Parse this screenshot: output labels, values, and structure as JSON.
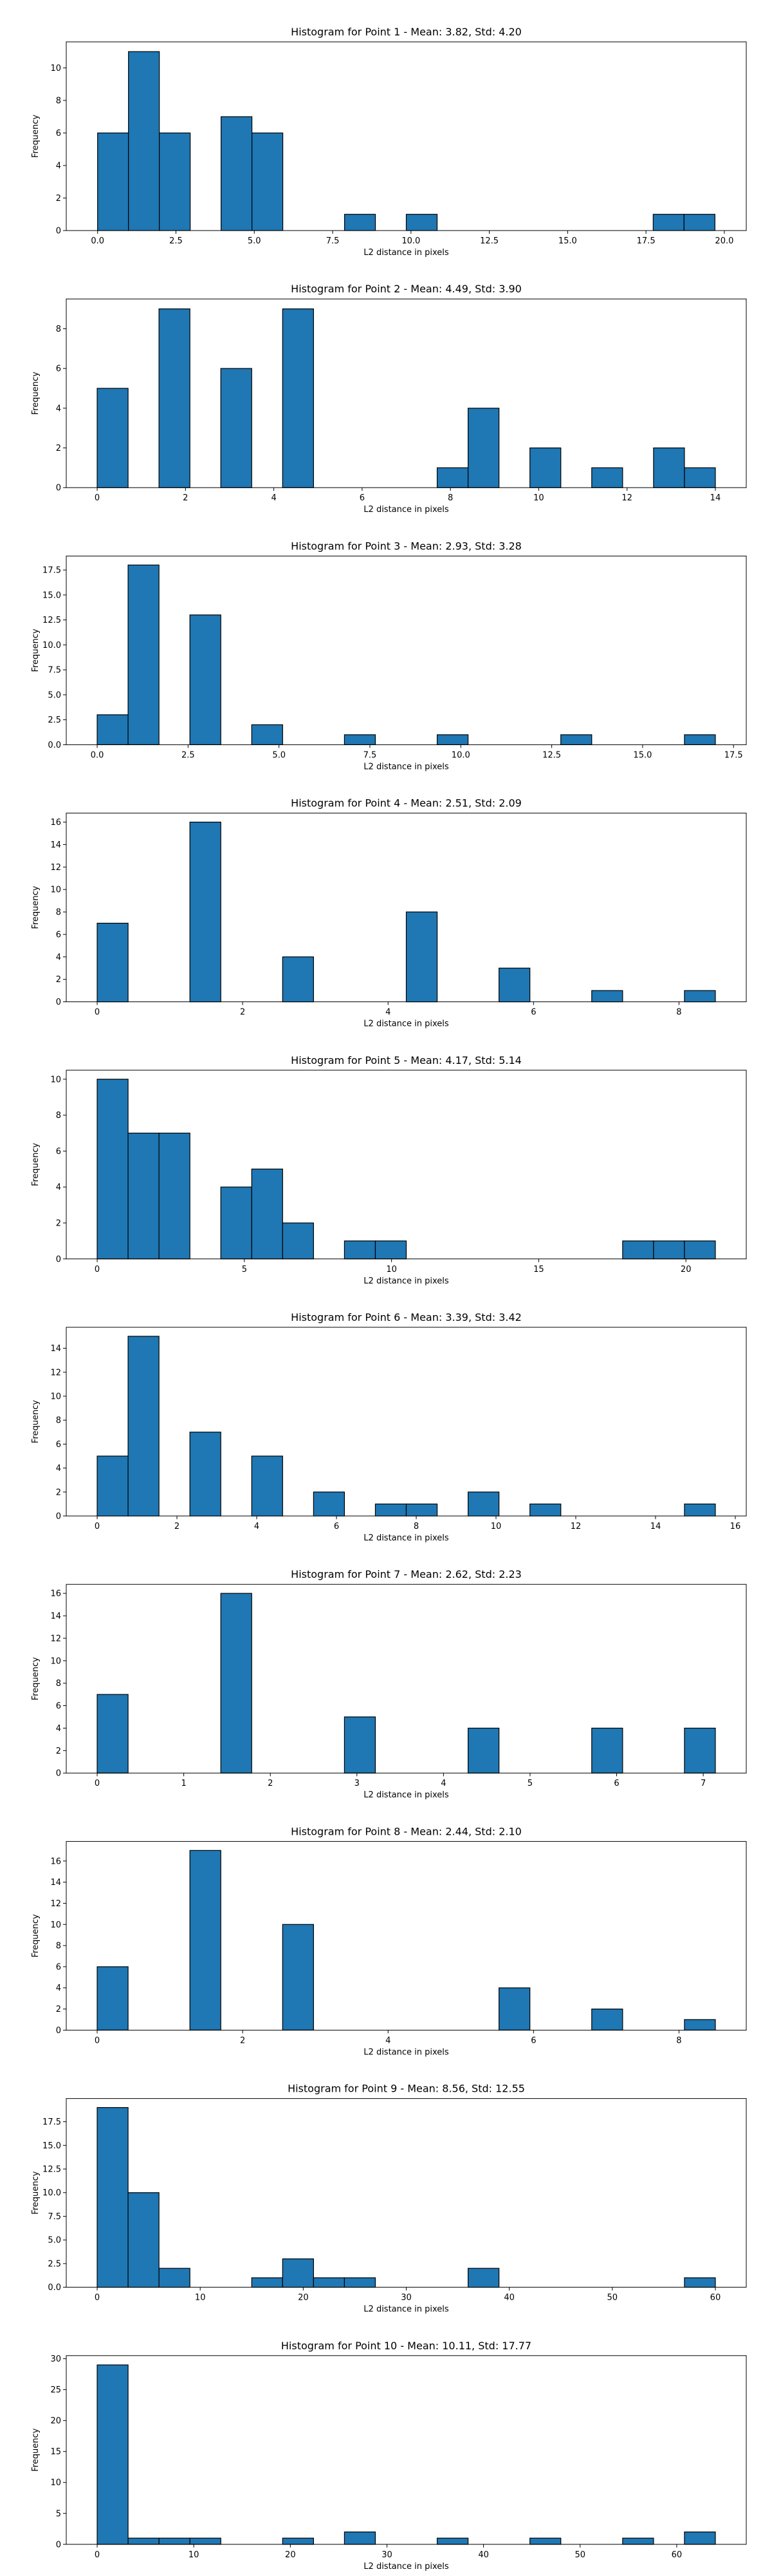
{
  "chart_data": [
    {
      "type": "bar",
      "title": "Histogram for Point 1 - Mean: 3.82, Std: 4.20",
      "xlabel": "L2 distance in pixels",
      "ylabel": "Frequency",
      "xlim": [
        -1.0,
        20.7
      ],
      "ylim": [
        0,
        11.6
      ],
      "xticks": [
        0.0,
        2.5,
        5.0,
        7.5,
        10.0,
        12.5,
        15.0,
        17.5,
        20.0
      ],
      "xtick_labels": [
        "0.0",
        "2.5",
        "5.0",
        "7.5",
        "10.0",
        "12.5",
        "15.0",
        "17.5",
        "20.0"
      ],
      "yticks": [
        0,
        2,
        4,
        6,
        8,
        10
      ],
      "ytick_labels": [
        "0",
        "2",
        "4",
        "6",
        "8",
        "10"
      ],
      "bin_edges": [
        0.0,
        0.985,
        1.97,
        2.955,
        3.94,
        4.925,
        5.91,
        6.895,
        7.88,
        8.865,
        9.85,
        10.835,
        11.82,
        12.805,
        13.79,
        14.775,
        15.76,
        16.745,
        17.73,
        18.715,
        19.7
      ],
      "counts": [
        6,
        11,
        6,
        0,
        7,
        6,
        0,
        0,
        1,
        0,
        1,
        0,
        0,
        0,
        0,
        0,
        0,
        0,
        1,
        1
      ],
      "color": "#1f77b4"
    },
    {
      "type": "bar",
      "title": "Histogram for Point 2 - Mean: 4.49, Std: 3.90",
      "xlabel": "L2 distance in pixels",
      "ylabel": "Frequency",
      "xlim": [
        -0.7,
        14.7
      ],
      "ylim": [
        0,
        9.5
      ],
      "xticks": [
        0,
        2,
        4,
        6,
        8,
        10,
        12,
        14
      ],
      "xtick_labels": [
        "0",
        "2",
        "4",
        "6",
        "8",
        "10",
        "12",
        "14"
      ],
      "yticks": [
        0,
        2,
        4,
        6,
        8
      ],
      "ytick_labels": [
        "0",
        "2",
        "4",
        "6",
        "8"
      ],
      "bin_edges": [
        0.0,
        0.7,
        1.4,
        2.1,
        2.8,
        3.5,
        4.2,
        4.9,
        5.6,
        6.3,
        7.0,
        7.7,
        8.4,
        9.1,
        9.8,
        10.5,
        11.2,
        11.9,
        12.6,
        13.3,
        14.0
      ],
      "counts": [
        5,
        0,
        9,
        0,
        6,
        0,
        9,
        0,
        0,
        0,
        0,
        1,
        4,
        0,
        2,
        0,
        1,
        0,
        2,
        1
      ],
      "color": "#1f77b4"
    },
    {
      "type": "bar",
      "title": "Histogram for Point 3 - Mean: 2.93, Std: 3.28",
      "xlabel": "L2 distance in pixels",
      "ylabel": "Frequency",
      "xlim": [
        -0.85,
        17.85
      ],
      "ylim": [
        0,
        18.9
      ],
      "xticks": [
        0.0,
        2.5,
        5.0,
        7.5,
        10.0,
        12.5,
        15.0,
        17.5
      ],
      "xtick_labels": [
        "0.0",
        "2.5",
        "5.0",
        "7.5",
        "10.0",
        "12.5",
        "15.0",
        "17.5"
      ],
      "yticks": [
        0.0,
        2.5,
        5.0,
        7.5,
        10.0,
        12.5,
        15.0,
        17.5
      ],
      "ytick_labels": [
        "0.0",
        "2.5",
        "5.0",
        "7.5",
        "10.0",
        "12.5",
        "15.0",
        "17.5"
      ],
      "bin_edges": [
        0.0,
        0.85,
        1.7,
        2.55,
        3.4,
        4.25,
        5.1,
        5.95,
        6.8,
        7.65,
        8.5,
        9.35,
        10.2,
        11.05,
        11.9,
        12.75,
        13.6,
        14.45,
        15.3,
        16.15,
        17.0
      ],
      "counts": [
        3,
        18,
        0,
        13,
        0,
        2,
        0,
        0,
        1,
        0,
        0,
        1,
        0,
        0,
        0,
        1,
        0,
        0,
        0,
        1
      ],
      "color": "#1f77b4"
    },
    {
      "type": "bar",
      "title": "Histogram for Point 4 - Mean: 2.51, Std: 2.09",
      "xlabel": "L2 distance in pixels",
      "ylabel": "Frequency",
      "xlim": [
        -0.425,
        8.925
      ],
      "ylim": [
        0,
        16.8
      ],
      "xticks": [
        0,
        2,
        4,
        6,
        8
      ],
      "xtick_labels": [
        "0",
        "2",
        "4",
        "6",
        "8"
      ],
      "yticks": [
        0,
        2,
        4,
        6,
        8,
        10,
        12,
        14,
        16
      ],
      "ytick_labels": [
        "0",
        "2",
        "4",
        "6",
        "8",
        "10",
        "12",
        "14",
        "16"
      ],
      "bin_edges": [
        0.0,
        0.425,
        0.85,
        1.275,
        1.7,
        2.125,
        2.55,
        2.975,
        3.4,
        3.825,
        4.25,
        4.675,
        5.1,
        5.525,
        5.95,
        6.375,
        6.8,
        7.225,
        7.65,
        8.075,
        8.5
      ],
      "counts": [
        7,
        0,
        0,
        16,
        0,
        0,
        4,
        0,
        0,
        0,
        8,
        0,
        0,
        3,
        0,
        0,
        1,
        0,
        0,
        1
      ],
      "color": "#1f77b4"
    },
    {
      "type": "bar",
      "title": "Histogram for Point 5 - Mean: 4.17, Std: 5.14",
      "xlabel": "L2 distance in pixels",
      "ylabel": "Frequency",
      "xlim": [
        -1.05,
        22.05
      ],
      "ylim": [
        0,
        10.5
      ],
      "xticks": [
        0,
        5,
        10,
        15,
        20
      ],
      "xtick_labels": [
        "0",
        "5",
        "10",
        "15",
        "20"
      ],
      "yticks": [
        0,
        2,
        4,
        6,
        8,
        10
      ],
      "ytick_labels": [
        "0",
        "2",
        "4",
        "6",
        "8",
        "10"
      ],
      "bin_edges": [
        0.0,
        1.05,
        2.1,
        3.15,
        4.2,
        5.25,
        6.3,
        7.35,
        8.4,
        9.45,
        10.5,
        11.55,
        12.6,
        13.65,
        14.7,
        15.75,
        16.8,
        17.85,
        18.9,
        19.95,
        21.0
      ],
      "counts": [
        10,
        7,
        7,
        0,
        4,
        5,
        2,
        0,
        1,
        1,
        0,
        0,
        0,
        0,
        0,
        0,
        0,
        1,
        1,
        1
      ],
      "color": "#1f77b4"
    },
    {
      "type": "bar",
      "title": "Histogram for Point 6 - Mean: 3.39, Std: 3.42",
      "xlabel": "L2 distance in pixels",
      "ylabel": "Frequency",
      "xlim": [
        -0.775,
        16.275
      ],
      "ylim": [
        0,
        15.75
      ],
      "xticks": [
        0,
        2,
        4,
        6,
        8,
        10,
        12,
        14,
        16
      ],
      "xtick_labels": [
        "0",
        "2",
        "4",
        "6",
        "8",
        "10",
        "12",
        "14",
        "16"
      ],
      "yticks": [
        0,
        2,
        4,
        6,
        8,
        10,
        12,
        14
      ],
      "ytick_labels": [
        "0",
        "2",
        "4",
        "6",
        "8",
        "10",
        "12",
        "14"
      ],
      "bin_edges": [
        0.0,
        0.775,
        1.55,
        2.325,
        3.1,
        3.875,
        4.65,
        5.425,
        6.2,
        6.975,
        7.75,
        8.525,
        9.3,
        10.075,
        10.85,
        11.625,
        12.4,
        13.175,
        13.95,
        14.725,
        15.5
      ],
      "counts": [
        5,
        15,
        0,
        7,
        0,
        5,
        0,
        2,
        0,
        1,
        1,
        0,
        2,
        0,
        1,
        0,
        0,
        0,
        0,
        1
      ],
      "color": "#1f77b4"
    },
    {
      "type": "bar",
      "title": "Histogram for Point 7 - Mean: 2.62, Std: 2.23",
      "xlabel": "L2 distance in pixels",
      "ylabel": "Frequency",
      "xlim": [
        -0.357,
        7.497
      ],
      "ylim": [
        0,
        16.8
      ],
      "xticks": [
        0,
        1,
        2,
        3,
        4,
        5,
        6,
        7
      ],
      "xtick_labels": [
        "0",
        "1",
        "2",
        "3",
        "4",
        "5",
        "6",
        "7"
      ],
      "yticks": [
        0,
        2,
        4,
        6,
        8,
        10,
        12,
        14,
        16
      ],
      "ytick_labels": [
        "0",
        "2",
        "4",
        "6",
        "8",
        "10",
        "12",
        "14",
        "16"
      ],
      "bin_edges": [
        0.0,
        0.357,
        0.714,
        1.071,
        1.428,
        1.785,
        2.142,
        2.499,
        2.856,
        3.213,
        3.57,
        3.927,
        4.284,
        4.641,
        4.998,
        5.355,
        5.712,
        6.069,
        6.426,
        6.783,
        7.14
      ],
      "counts": [
        7,
        0,
        0,
        0,
        16,
        0,
        0,
        0,
        5,
        0,
        0,
        0,
        4,
        0,
        0,
        0,
        4,
        0,
        0,
        4
      ],
      "color": "#1f77b4"
    },
    {
      "type": "bar",
      "title": "Histogram for Point 8 - Mean: 2.44, Std: 2.10",
      "xlabel": "L2 distance in pixels",
      "ylabel": "Frequency",
      "xlim": [
        -0.425,
        8.925
      ],
      "ylim": [
        0,
        17.85
      ],
      "xticks": [
        0,
        2,
        4,
        6,
        8
      ],
      "xtick_labels": [
        "0",
        "2",
        "4",
        "6",
        "8"
      ],
      "yticks": [
        0,
        2,
        4,
        6,
        8,
        10,
        12,
        14,
        16
      ],
      "ytick_labels": [
        "0",
        "2",
        "4",
        "6",
        "8",
        "10",
        "12",
        "14",
        "16"
      ],
      "bin_edges": [
        0.0,
        0.425,
        0.85,
        1.275,
        1.7,
        2.125,
        2.55,
        2.975,
        3.4,
        3.825,
        4.25,
        4.675,
        5.1,
        5.525,
        5.95,
        6.375,
        6.8,
        7.225,
        7.65,
        8.075,
        8.5
      ],
      "counts": [
        6,
        0,
        0,
        17,
        0,
        0,
        10,
        0,
        0,
        0,
        0,
        0,
        0,
        4,
        0,
        0,
        2,
        0,
        0,
        1
      ],
      "color": "#1f77b4"
    },
    {
      "type": "bar",
      "title": "Histogram for Point 9 - Mean: 8.56, Std: 12.55",
      "xlabel": "L2 distance in pixels",
      "ylabel": "Frequency",
      "xlim": [
        -3.0,
        63.0
      ],
      "ylim": [
        0,
        19.95
      ],
      "xticks": [
        0,
        10,
        20,
        30,
        40,
        50,
        60
      ],
      "xtick_labels": [
        "0",
        "10",
        "20",
        "30",
        "40",
        "50",
        "60"
      ],
      "yticks": [
        0.0,
        2.5,
        5.0,
        7.5,
        10.0,
        12.5,
        15.0,
        17.5
      ],
      "ytick_labels": [
        "0.0",
        "2.5",
        "5.0",
        "7.5",
        "10.0",
        "12.5",
        "15.0",
        "17.5"
      ],
      "bin_edges": [
        0.0,
        3.0,
        6.0,
        9.0,
        12.0,
        15.0,
        18.0,
        21.0,
        24.0,
        27.0,
        30.0,
        33.0,
        36.0,
        39.0,
        42.0,
        45.0,
        48.0,
        51.0,
        54.0,
        57.0,
        60.0
      ],
      "counts": [
        19,
        10,
        2,
        0,
        0,
        1,
        3,
        1,
        1,
        0,
        0,
        0,
        2,
        0,
        0,
        0,
        0,
        0,
        0,
        1
      ],
      "color": "#1f77b4"
    },
    {
      "type": "bar",
      "title": "Histogram for Point 10 - Mean: 10.11, Std: 17.77",
      "xlabel": "L2 distance in pixels",
      "ylabel": "Frequency",
      "xlim": [
        -3.2,
        67.2
      ],
      "ylim": [
        0,
        30.5
      ],
      "xticks": [
        0,
        10,
        20,
        30,
        40,
        50,
        60
      ],
      "xtick_labels": [
        "0",
        "10",
        "20",
        "30",
        "40",
        "50",
        "60"
      ],
      "yticks": [
        0,
        5,
        10,
        15,
        20,
        25,
        30
      ],
      "ytick_labels": [
        "0",
        "5",
        "10",
        "15",
        "20",
        "25",
        "30"
      ],
      "bin_edges": [
        0.0,
        3.2,
        6.4,
        9.6,
        12.8,
        16.0,
        19.2,
        22.4,
        25.6,
        28.8,
        32.0,
        35.2,
        38.4,
        41.6,
        44.8,
        48.0,
        51.2,
        54.4,
        57.6,
        60.8,
        64.0
      ],
      "counts": [
        29,
        1,
        1,
        1,
        0,
        0,
        1,
        0,
        2,
        0,
        0,
        1,
        0,
        0,
        1,
        0,
        0,
        1,
        0,
        2
      ],
      "color": "#1f77b4"
    }
  ]
}
